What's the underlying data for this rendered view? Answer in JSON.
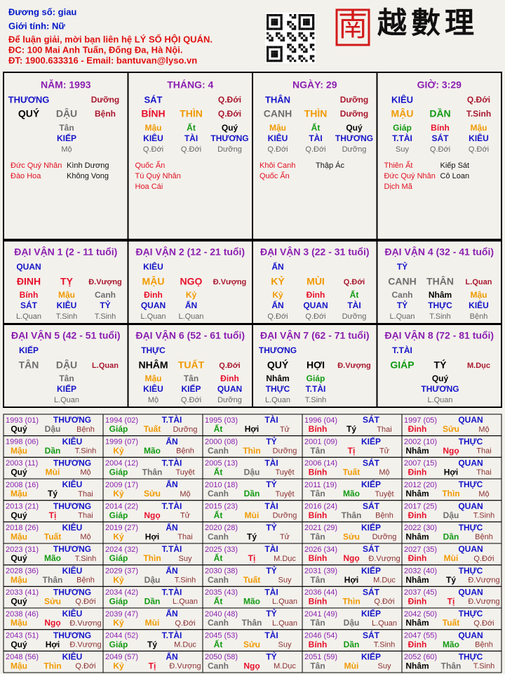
{
  "header": {
    "lines": [
      "Đương số: giau",
      "Giới tính:  Nữ"
    ],
    "contact": [
      "Để luận giải, mời bạn liên hệ LÝ SỐ HỘI QUÁN.",
      "ĐC: 100 Mai Anh Tuấn, Đống Đa, Hà Nội.",
      "ĐT: 1900.633316 - Email: bantuvan@lyso.vn"
    ],
    "logo": [
      "南",
      "越數理"
    ]
  },
  "element_colors": {
    "giáp": "#129a12",
    "ất": "#129a12",
    "dần": "#129a12",
    "mão": "#129a12",
    "bính": "#e8102a",
    "đinh": "#e8102a",
    "tị": "#e8102a",
    "tỵ": "#e8102a",
    "ngọ": "#e8102a",
    "mậu": "#f09a00",
    "kỷ": "#f09a00",
    "thìn": "#f09a00",
    "tuất": "#f09a00",
    "sửu": "#f09a00",
    "mùi": "#f09a00",
    "canh": "#6e6e6e",
    "tân": "#6e6e6e",
    "thân": "#6e6e6e",
    "dậu": "#6e6e6e",
    "nhâm": "#000000",
    "quý": "#000000",
    "hợi": "#000000",
    "tý": "#000000"
  },
  "pillars": [
    {
      "title": "NĂM: 1993",
      "god": "THƯƠNG",
      "phase_top": "Dưỡng",
      "stem": "QUÝ",
      "branch": "DẬU",
      "phase": "Bệnh",
      "hidden": [
        {
          "stem": "Tân",
          "god": "KIẾP",
          "phase": "Mộ"
        }
      ],
      "stars": [
        [
          "Đức Quý Nhân",
          "Kình Dương"
        ],
        [
          "Đào Hoa",
          "Không Vong"
        ]
      ]
    },
    {
      "title": "THÁNG: 4",
      "god": "SÁT",
      "phase_top": "Q.Đới",
      "stem": "BÍNH",
      "branch": "THÌN",
      "phase": "Q.Đới",
      "hidden": [
        {
          "stem": "Mậu",
          "god": "KIÊU",
          "phase": "Q.Đới"
        },
        {
          "stem": "Ất",
          "god": "TÀI",
          "phase": "Q.Đới"
        },
        {
          "stem": "Quý",
          "god": "THƯƠNG",
          "phase": "Dưỡng"
        }
      ],
      "stars": [
        [
          "Quốc Ấn"
        ],
        [
          "Tú Quý Nhân"
        ],
        [
          "Hoa Cái"
        ]
      ]
    },
    {
      "title": "NGÀY: 29",
      "god": "THÂN",
      "phase_top": "Dưỡng",
      "stem": "CANH",
      "branch": "THÌN",
      "phase": "Dưỡng",
      "hidden": [
        {
          "stem": "Mậu",
          "god": "KIÊU",
          "phase": "Q.Đới"
        },
        {
          "stem": "Ất",
          "god": "TÀI",
          "phase": "Q.Đới"
        },
        {
          "stem": "Quý",
          "god": "THƯƠNG",
          "phase": "Dưỡng"
        }
      ],
      "stars": [
        [
          "Khôi Canh",
          "Thập Ác"
        ],
        [
          "Quốc Ấn"
        ]
      ]
    },
    {
      "title": "GIỜ: 3:29",
      "god": "KIÊU",
      "phase_top": "Q.Đới",
      "stem": "MẬU",
      "branch": "DẦN",
      "phase": "T.Sinh",
      "hidden": [
        {
          "stem": "Giáp",
          "god": "T.TÀI",
          "phase": "Suy"
        },
        {
          "stem": "Bính",
          "god": "SÁT",
          "phase": "Q.Đới"
        },
        {
          "stem": "Mậu",
          "god": "KIÊU",
          "phase": "Q.Đới"
        }
      ],
      "stars": [
        [
          "Thiên Ất",
          "Kiếp Sát"
        ],
        [
          "Đức Quý Nhân",
          "Cô Loan"
        ],
        [
          "Dịch Mã"
        ]
      ]
    }
  ],
  "luck": [
    {
      "title": "ĐẠI VẬN 1 (2 - 11 tuổi)",
      "god": "QUAN",
      "stem": "ĐINH",
      "branch": "TỴ",
      "phase": "Đ.Vượng",
      "hidden": [
        {
          "stem": "Bính",
          "god": "SÁT",
          "phase": "L.Quan"
        },
        {
          "stem": "Mậu",
          "god": "KIÊU",
          "phase": "T.Sinh"
        },
        {
          "stem": "Canh",
          "god": "TỶ",
          "phase": "T.Sinh"
        }
      ]
    },
    {
      "title": "ĐẠI VẬN 2 (12 - 21 tuổi)",
      "god": "KIÊU",
      "stem": "MẬU",
      "branch": "NGỌ",
      "phase": "Đ.Vượng",
      "hidden": [
        {
          "stem": "Đinh",
          "god": "QUAN",
          "phase": "L.Quan"
        },
        {
          "stem": "Kỷ",
          "god": "ẤN",
          "phase": "L.Quan"
        }
      ]
    },
    {
      "title": "ĐẠI VẬN 3 (22 - 31 tuổi)",
      "god": "ẤN",
      "stem": "KỶ",
      "branch": "MÙI",
      "phase": "Q.Đới",
      "hidden": [
        {
          "stem": "Kỷ",
          "god": "ẤN",
          "phase": "Q.Đới"
        },
        {
          "stem": "Đinh",
          "god": "QUAN",
          "phase": "Q.Đới"
        },
        {
          "stem": "Ất",
          "god": "TÀI",
          "phase": "Dưỡng"
        }
      ]
    },
    {
      "title": "ĐẠI VẬN 4 (32 - 41 tuổi)",
      "god": "TỶ",
      "stem": "CANH",
      "branch": "THÂN",
      "phase": "L.Quan",
      "hidden": [
        {
          "stem": "Canh",
          "god": "TỶ",
          "phase": "L.Quan"
        },
        {
          "stem": "Nhâm",
          "god": "THỰC",
          "phase": "T.Sinh"
        },
        {
          "stem": "Mậu",
          "god": "KIÊU",
          "phase": "Bệnh"
        }
      ]
    },
    {
      "title": "ĐẠI VẬN 5 (42 - 51 tuổi)",
      "god": "KIẾP",
      "stem": "TÂN",
      "branch": "DẬU",
      "phase": "L.Quan",
      "hidden": [
        {
          "stem": "Tân",
          "god": "KIẾP",
          "phase": "L.Quan"
        }
      ]
    },
    {
      "title": "ĐẠI VẬN 6 (52 - 61 tuổi)",
      "god": "THỰC",
      "stem": "NHÂM",
      "branch": "TUẤT",
      "phase": "Q.Đới",
      "hidden": [
        {
          "stem": "Mậu",
          "god": "KIÊU",
          "phase": "Mộ"
        },
        {
          "stem": "Tân",
          "god": "KIẾP",
          "phase": "Q.Đới"
        },
        {
          "stem": "Đinh",
          "god": "QUAN",
          "phase": "Dưỡng"
        }
      ]
    },
    {
      "title": "ĐẠI VẬN 7 (62 - 71 tuổi)",
      "god": "THƯƠNG",
      "stem": "QUÝ",
      "branch": "HỢI",
      "phase": "Đ.Vượng",
      "hidden": [
        {
          "stem": "Nhâm",
          "god": "THỰC",
          "phase": "L.Quan"
        },
        {
          "stem": "Giáp",
          "god": "T.TÀI",
          "phase": "T.Sinh"
        }
      ]
    },
    {
      "title": "ĐẠI VẬN 8 (72 - 81 tuổi)",
      "god": "T.TÀI",
      "stem": "GIÁP",
      "branch": "TÝ",
      "phase": "M.Dục",
      "hidden": [
        {
          "stem": "Quý",
          "god": "THƯƠNG",
          "phase": "L.Quan"
        }
      ]
    }
  ],
  "years": [
    [
      "1993 (01)",
      "THƯƠNG",
      "Quý",
      "Dậu",
      "Bệnh"
    ],
    [
      "1994 (02)",
      "T.TÀI",
      "Giáp",
      "Tuất",
      "Dưỡng"
    ],
    [
      "1995 (03)",
      "TÀI",
      "Ất",
      "Hợi",
      "Tử"
    ],
    [
      "1996 (04)",
      "SÁT",
      "Bính",
      "Tý",
      "Thai"
    ],
    [
      "1997 (05)",
      "QUAN",
      "Đinh",
      "Sửu",
      "Mộ"
    ],
    [
      "1998 (06)",
      "KIÊU",
      "Mậu",
      "Dần",
      "T.Sinh"
    ],
    [
      "1999 (07)",
      "ẤN",
      "Kỷ",
      "Mão",
      "Bệnh"
    ],
    [
      "2000 (08)",
      "TỶ",
      "Canh",
      "Thìn",
      "Dưỡng"
    ],
    [
      "2001 (09)",
      "KIẾP",
      "Tân",
      "Tị",
      "Tử"
    ],
    [
      "2002 (10)",
      "THỰC",
      "Nhâm",
      "Ngọ",
      "Thai"
    ],
    [
      "2003 (11)",
      "THƯƠNG",
      "Quý",
      "Mùi",
      "Mộ"
    ],
    [
      "2004 (12)",
      "T.TÀI",
      "Giáp",
      "Thân",
      "Tuyệt"
    ],
    [
      "2005 (13)",
      "TÀI",
      "Ất",
      "Dậu",
      "Tuyệt"
    ],
    [
      "2006 (14)",
      "SÁT",
      "Bính",
      "Tuất",
      "Mộ"
    ],
    [
      "2007 (15)",
      "QUAN",
      "Đinh",
      "Hợi",
      "Thai"
    ],
    [
      "2008 (16)",
      "KIÊU",
      "Mậu",
      "Tý",
      "Thai"
    ],
    [
      "2009 (17)",
      "ẤN",
      "Kỷ",
      "Sửu",
      "Mộ"
    ],
    [
      "2010 (18)",
      "TỶ",
      "Canh",
      "Dần",
      "Tuyệt"
    ],
    [
      "2011 (19)",
      "KIẾP",
      "Tân",
      "Mão",
      "Tuyệt"
    ],
    [
      "2012 (20)",
      "THỰC",
      "Nhâm",
      "Thìn",
      "Mộ"
    ],
    [
      "2013 (21)",
      "THƯƠNG",
      "Quý",
      "Tị",
      "Thai"
    ],
    [
      "2014 (22)",
      "T.TÀI",
      "Giáp",
      "Ngọ",
      "Tử"
    ],
    [
      "2015 (23)",
      "TÀI",
      "Ất",
      "Mùi",
      "Dưỡng"
    ],
    [
      "2016 (24)",
      "SÁT",
      "Bính",
      "Thân",
      "Bệnh"
    ],
    [
      "2017 (25)",
      "QUAN",
      "Đinh",
      "Dậu",
      "T.Sinh"
    ],
    [
      "2018 (26)",
      "KIÊU",
      "Mậu",
      "Tuất",
      "Mộ"
    ],
    [
      "2019 (27)",
      "ẤN",
      "Kỷ",
      "Hợi",
      "Thai"
    ],
    [
      "2020 (28)",
      "TỶ",
      "Canh",
      "Tý",
      "Tử"
    ],
    [
      "2021 (29)",
      "KIẾP",
      "Tân",
      "Sửu",
      "Dưỡng"
    ],
    [
      "2022 (30)",
      "THỰC",
      "Nhâm",
      "Dần",
      "Bệnh"
    ],
    [
      "2023 (31)",
      "THƯƠNG",
      "Quý",
      "Mão",
      "T.Sinh"
    ],
    [
      "2024 (32)",
      "T.TÀI",
      "Giáp",
      "Thìn",
      "Suy"
    ],
    [
      "2025 (33)",
      "TÀI",
      "Ất",
      "Tị",
      "M.Dục"
    ],
    [
      "2026 (34)",
      "SÁT",
      "Bính",
      "Ngọ",
      "Đ.Vượng"
    ],
    [
      "2027 (35)",
      "QUAN",
      "Đinh",
      "Mùi",
      "Q.Đới"
    ],
    [
      "2028 (36)",
      "KIÊU",
      "Mậu",
      "Thân",
      "Bệnh"
    ],
    [
      "2029 (37)",
      "ẤN",
      "Kỷ",
      "Dậu",
      "T.Sinh"
    ],
    [
      "2030 (38)",
      "TỶ",
      "Canh",
      "Tuất",
      "Suy"
    ],
    [
      "2031 (39)",
      "KIẾP",
      "Tân",
      "Hợi",
      "M.Dục"
    ],
    [
      "2032 (40)",
      "THỰC",
      "Nhâm",
      "Tý",
      "Đ.Vượng"
    ],
    [
      "2033 (41)",
      "THƯƠNG",
      "Quý",
      "Sửu",
      "Q.Đới"
    ],
    [
      "2034 (42)",
      "T.TÀI",
      "Giáp",
      "Dần",
      "L.Quan"
    ],
    [
      "2035 (43)",
      "TÀI",
      "Ất",
      "Mão",
      "L.Quan"
    ],
    [
      "2036 (44)",
      "SÁT",
      "Bính",
      "Thìn",
      "Q.Đới"
    ],
    [
      "2037 (45)",
      "QUAN",
      "Đinh",
      "Tị",
      "Đ.Vượng"
    ],
    [
      "2038 (46)",
      "KIÊU",
      "Mậu",
      "Ngọ",
      "Đ.Vượng"
    ],
    [
      "2039 (47)",
      "ẤN",
      "Kỷ",
      "Mùi",
      "Q.Đới"
    ],
    [
      "2040 (48)",
      "TỶ",
      "Canh",
      "Thân",
      "L.Quan"
    ],
    [
      "2041 (49)",
      "KIẾP",
      "Tân",
      "Dậu",
      "L.Quan"
    ],
    [
      "2042 (50)",
      "THỰC",
      "Nhâm",
      "Tuất",
      "Q.Đới"
    ],
    [
      "2043 (51)",
      "THƯƠNG",
      "Quý",
      "Hợi",
      "Đ.Vượng"
    ],
    [
      "2044 (52)",
      "T.TÀI",
      "Giáp",
      "Tý",
      "M.Dục"
    ],
    [
      "2045 (53)",
      "TÀI",
      "Ất",
      "Sửu",
      "Suy"
    ],
    [
      "2046 (54)",
      "SÁT",
      "Bính",
      "Dần",
      "T.Sinh"
    ],
    [
      "2047 (55)",
      "QUAN",
      "Đinh",
      "Mão",
      "Bệnh"
    ],
    [
      "2048 (56)",
      "KIÊU",
      "Mậu",
      "Thìn",
      "Q.Đới"
    ],
    [
      "2049 (57)",
      "ẤN",
      "Kỷ",
      "Tị",
      "Đ.Vượng"
    ],
    [
      "2050 (58)",
      "TỶ",
      "Canh",
      "Ngọ",
      "M.Dục"
    ],
    [
      "2051 (59)",
      "KIẾP",
      "Tân",
      "Mùi",
      "Suy"
    ],
    [
      "2052 (60)",
      "THỰC",
      "Nhâm",
      "Thân",
      "T.Sinh"
    ]
  ]
}
